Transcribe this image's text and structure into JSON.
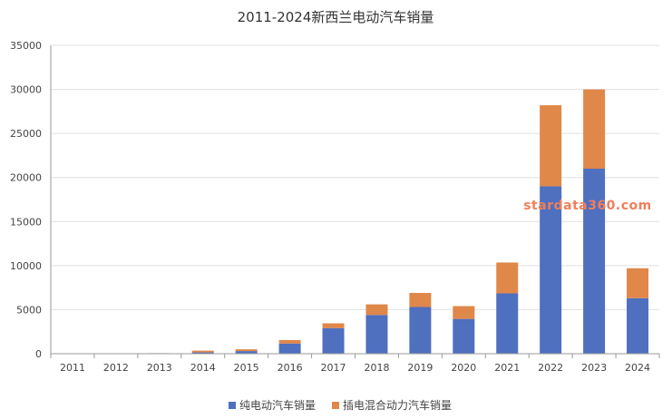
{
  "chart_data": {
    "type": "bar",
    "stacked": true,
    "title": "2011-2024新西兰电动汽车销量",
    "categories": [
      "2011",
      "2012",
      "2013",
      "2014",
      "2015",
      "2016",
      "2017",
      "2018",
      "2019",
      "2020",
      "2021",
      "2022",
      "2023",
      "2024"
    ],
    "series": [
      {
        "name": "纯电动汽车销量",
        "color": "#4f6fbf",
        "values": [
          30,
          40,
          40,
          150,
          300,
          1150,
          2900,
          4400,
          5300,
          3950,
          6850,
          19000,
          21000,
          6300
        ]
      },
      {
        "name": "插电混合动力汽车销量",
        "color": "#e0874a",
        "values": [
          0,
          0,
          20,
          200,
          200,
          400,
          550,
          1200,
          1600,
          1450,
          3500,
          9200,
          9000,
          3400
        ]
      }
    ],
    "ylim": [
      0,
      35000
    ],
    "yticks": [
      0,
      5000,
      10000,
      15000,
      20000,
      25000,
      30000,
      35000
    ],
    "grid": true,
    "legend_position": "bottom"
  },
  "watermark": "stardata360.com"
}
